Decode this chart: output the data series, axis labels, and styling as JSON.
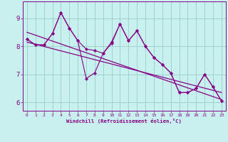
{
  "xlabel": "Windchill (Refroidissement éolien,°C)",
  "xlim": [
    -0.5,
    23.5
  ],
  "ylim": [
    5.7,
    9.6
  ],
  "yticks": [
    6,
    7,
    8,
    9
  ],
  "xticks": [
    0,
    1,
    2,
    3,
    4,
    5,
    6,
    7,
    8,
    9,
    10,
    11,
    12,
    13,
    14,
    15,
    16,
    17,
    18,
    19,
    20,
    21,
    22,
    23
  ],
  "bg_color": "#c8f0ee",
  "line_color": "#880088",
  "grid_color": "#99cccc",
  "jagged1_x": [
    0,
    1,
    2,
    3,
    4,
    5,
    6,
    7,
    8,
    9,
    10,
    11,
    12,
    13,
    14,
    15,
    16,
    17,
    18,
    19,
    20,
    21,
    22,
    23
  ],
  "jagged1_y": [
    8.25,
    8.05,
    8.05,
    8.45,
    9.2,
    8.65,
    8.2,
    7.9,
    7.85,
    7.75,
    8.15,
    8.8,
    8.2,
    8.55,
    8.0,
    7.6,
    7.35,
    7.05,
    6.35,
    6.35,
    6.5,
    7.0,
    6.55,
    6.05
  ],
  "jagged2_x": [
    0,
    1,
    2,
    3,
    4,
    5,
    6,
    7,
    8,
    9,
    10,
    11,
    12,
    13,
    14,
    15,
    16,
    17,
    18,
    19,
    20,
    21,
    22,
    23
  ],
  "jagged2_y": [
    8.25,
    8.05,
    8.05,
    8.45,
    9.2,
    8.65,
    8.2,
    6.85,
    7.05,
    7.75,
    8.1,
    8.8,
    8.2,
    8.55,
    8.0,
    7.6,
    7.35,
    7.05,
    6.35,
    6.35,
    6.5,
    7.0,
    6.55,
    6.05
  ],
  "trend1": [
    8.5,
    6.1
  ],
  "trend2": [
    8.15,
    6.35
  ]
}
